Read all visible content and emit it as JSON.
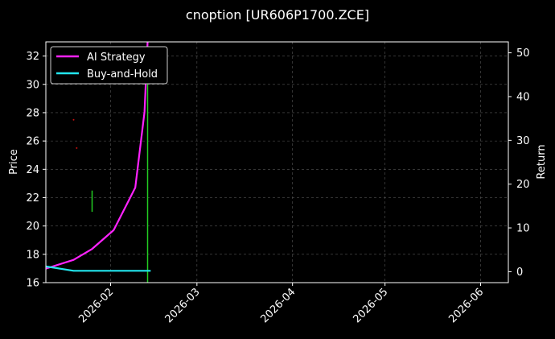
{
  "chart_data": {
    "type": "line",
    "title": "cnoption [UR606P1700.ZCE]",
    "ylabel_left": "Price",
    "ylabel_right": "Return",
    "x_range": [
      "2026-01-11",
      "2026-06-10"
    ],
    "ylim_left": [
      16,
      33
    ],
    "ylim_right": [
      -2.5,
      52.5
    ],
    "yticks_left": [
      16,
      18,
      20,
      22,
      24,
      26,
      28,
      30,
      32
    ],
    "yticks_right": [
      0,
      10,
      20,
      30,
      40,
      50
    ],
    "xticks": [
      "2026-02",
      "2026-03",
      "2026-04",
      "2026-05",
      "2026-06"
    ],
    "grid": true,
    "legend_position": "top-left",
    "series": [
      {
        "name": "AI Strategy",
        "axis": "right",
        "color": "#ff22ff",
        "points": [
          [
            "2026-01-11",
            0.7
          ],
          [
            "2026-01-20",
            2.7
          ],
          [
            "2026-01-26",
            5.2
          ],
          [
            "2026-02-02",
            9.5
          ],
          [
            "2026-02-09",
            19.2
          ],
          [
            "2026-02-12",
            36.5
          ],
          [
            "2026-02-13",
            52.5
          ]
        ]
      },
      {
        "name": "Buy-and-Hold",
        "axis": "right",
        "color": "#22e5ee",
        "points": [
          [
            "2026-01-11",
            1.2
          ],
          [
            "2026-01-20",
            0.2
          ],
          [
            "2026-02-14",
            0.2
          ]
        ]
      }
    ],
    "price_marks": [
      {
        "date": "2026-01-26",
        "low": 21.0,
        "high": 22.5,
        "color": "#22cc22"
      },
      {
        "date": "2026-02-13",
        "low": 16.0,
        "high": 30.0,
        "color": "#22cc22"
      }
    ],
    "price_dots": [
      {
        "date": "2026-01-20",
        "value": 27.5,
        "color": "#cc1111"
      },
      {
        "date": "2026-01-21",
        "value": 25.5,
        "color": "#cc1111"
      }
    ]
  }
}
